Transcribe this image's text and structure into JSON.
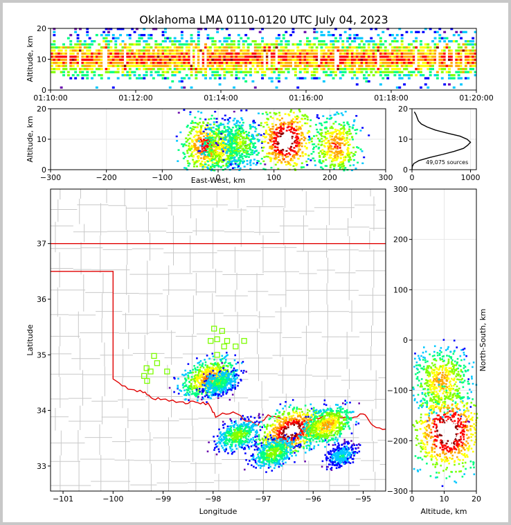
{
  "title": "Oklahoma LMA 0110-0120 UTC July 04, 2023",
  "colors": {
    "border_red": "#e00000",
    "county": "#c8c8c8",
    "station": "#7cfc00",
    "density": [
      "#6a0dad",
      "#0000ff",
      "#00c8ff",
      "#00ff80",
      "#80ff00",
      "#ffff00",
      "#ffa500",
      "#ff0000",
      "#8b0000",
      "#ffffff"
    ]
  },
  "chart_data": [
    {
      "id": "time_height",
      "type": "heatmap",
      "ylabel": "Altitude, km",
      "ylim": [
        0,
        20
      ],
      "yticks": [
        "0",
        "10",
        "20"
      ],
      "xticks": [
        "01:10:00",
        "01:12:00",
        "01:14:00",
        "01:16:00",
        "01:18:00",
        "01:20:00"
      ],
      "xlim": [
        "01:10:00",
        "01:20:00"
      ],
      "source_altitude_band_km": [
        3,
        18
      ],
      "peak_altitude_km": 10
    },
    {
      "id": "ew_altitude",
      "type": "heatmap",
      "xlabel": "East-West, km",
      "ylabel": "Altitude, km",
      "xlim": [
        -300,
        300
      ],
      "ylim": [
        0,
        20
      ],
      "xticks": [
        "−300",
        "−200",
        "−100",
        "0",
        "100",
        "200",
        "300"
      ],
      "yticks": [
        "0",
        "10",
        "20"
      ],
      "clusters": [
        {
          "x_km": -25,
          "alt_km": 8,
          "intensity": 0.8
        },
        {
          "x_km": 5,
          "alt_km": 7,
          "intensity": 0.6
        },
        {
          "x_km": 40,
          "alt_km": 9,
          "intensity": 0.5
        },
        {
          "x_km": 120,
          "alt_km": 10,
          "intensity": 1.0
        },
        {
          "x_km": 210,
          "alt_km": 8,
          "intensity": 0.75
        }
      ]
    },
    {
      "id": "altitude_histogram",
      "type": "line",
      "xlim": [
        0,
        1100
      ],
      "ylim": [
        0,
        20
      ],
      "xticks": [
        "0",
        "1000"
      ],
      "yticks": [
        "0",
        "10",
        "20"
      ],
      "annotation": "49,075 sources",
      "x": [
        0,
        5,
        30,
        120,
        300,
        520,
        720,
        880,
        950,
        1000,
        940,
        820,
        600,
        400,
        260,
        160,
        110,
        90,
        70,
        40
      ],
      "y": [
        0,
        1,
        2,
        3,
        4,
        5,
        6,
        7,
        8,
        9,
        10,
        11,
        12,
        13,
        14,
        15,
        16,
        17,
        18,
        19
      ]
    },
    {
      "id": "plan_view",
      "type": "heatmap",
      "xlabel": "Longitude",
      "ylabel": "Latitude",
      "xlim": [
        -101.25,
        -94.55
      ],
      "ylim": [
        32.55,
        37.98
      ],
      "xticks": [
        "−101",
        "−100",
        "−99",
        "−98",
        "−97",
        "−96",
        "−95"
      ],
      "yticks": [
        "33",
        "34",
        "35",
        "36",
        "37"
      ],
      "stations": [
        {
          "lon": -99.18,
          "lat": 34.98
        },
        {
          "lon": -99.12,
          "lat": 34.85
        },
        {
          "lon": -99.33,
          "lat": 34.76
        },
        {
          "lon": -99.25,
          "lat": 34.7
        },
        {
          "lon": -99.38,
          "lat": 34.62
        },
        {
          "lon": -99.32,
          "lat": 34.53
        },
        {
          "lon": -98.92,
          "lat": 34.7
        },
        {
          "lon": -97.98,
          "lat": 35.47
        },
        {
          "lon": -97.82,
          "lat": 35.43
        },
        {
          "lon": -97.92,
          "lat": 35.28
        },
        {
          "lon": -98.05,
          "lat": 35.25
        },
        {
          "lon": -97.72,
          "lat": 35.25
        },
        {
          "lon": -97.78,
          "lat": 35.15
        },
        {
          "lon": -97.55,
          "lat": 35.15
        },
        {
          "lon": -97.38,
          "lat": 35.25
        },
        {
          "lon": -97.92,
          "lat": 35.0
        }
      ],
      "clusters": [
        {
          "lon": -98.1,
          "lat": 34.6,
          "intensity": 0.75
        },
        {
          "lon": -97.88,
          "lat": 34.52,
          "intensity": 0.4
        },
        {
          "lon": -97.52,
          "lat": 33.57,
          "intensity": 0.5
        },
        {
          "lon": -96.45,
          "lat": 33.65,
          "intensity": 1.0
        },
        {
          "lon": -96.8,
          "lat": 33.25,
          "intensity": 0.5
        },
        {
          "lon": -95.72,
          "lat": 33.75,
          "intensity": 0.7
        },
        {
          "lon": -95.45,
          "lat": 33.2,
          "intensity": 0.3
        }
      ]
    },
    {
      "id": "ns_altitude",
      "type": "heatmap",
      "xlabel": "Altitude, km",
      "ylabel": "North-South, km",
      "xlim": [
        0,
        20
      ],
      "ylim": [
        -300,
        300
      ],
      "xticks": [
        "0",
        "10",
        "20"
      ],
      "yticks": [
        "−300",
        "−200",
        "−100",
        "0",
        "100",
        "200",
        "300"
      ],
      "clusters": [
        {
          "alt_km": 9,
          "y_km": -80,
          "intensity": 0.7
        },
        {
          "alt_km": 11,
          "y_km": -180,
          "intensity": 1.0
        }
      ]
    }
  ]
}
